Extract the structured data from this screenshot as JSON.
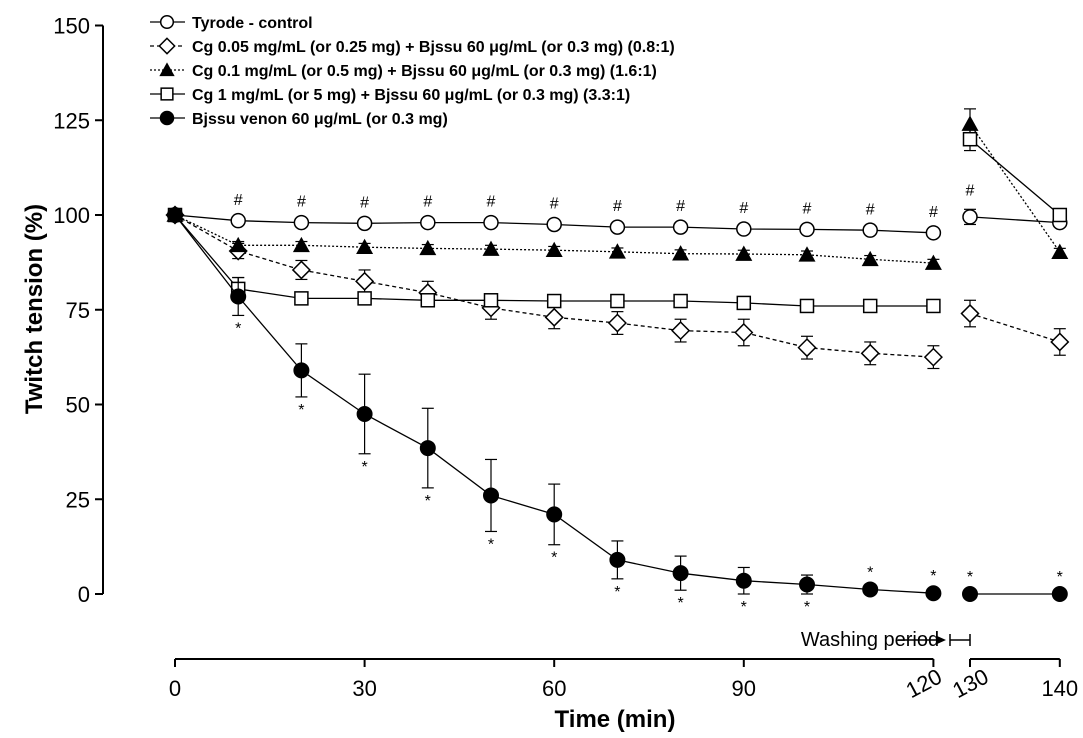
{
  "chart_data": {
    "type": "line",
    "xlabel": "Time (min)",
    "ylabel": "Twitch tension (%)",
    "xlim": [
      0,
      140
    ],
    "ylim": [
      0,
      150
    ],
    "xticks": [
      0,
      30,
      60,
      90,
      120,
      130,
      140
    ],
    "yticks": [
      0,
      25,
      50,
      75,
      100,
      125,
      150
    ],
    "legend_position": "top-left",
    "grid": false,
    "annotation": {
      "text": "Washing period",
      "from": 120,
      "to": 130
    },
    "series": [
      {
        "name": "Tyrode - control",
        "marker": "open-circle",
        "line": "solid",
        "x": [
          0,
          10,
          20,
          30,
          40,
          50,
          60,
          70,
          80,
          90,
          100,
          110,
          120,
          130,
          140
        ],
        "y": [
          100,
          98.5,
          98,
          97.8,
          98,
          98,
          97.5,
          96.8,
          96.8,
          96.3,
          96.2,
          96,
          95.3,
          99.5,
          98
        ],
        "err": [
          0,
          0.5,
          0.5,
          0.5,
          0.5,
          0.5,
          0.5,
          0.5,
          0.5,
          0.5,
          0.5,
          0.5,
          0.5,
          2,
          0.5
        ]
      },
      {
        "name": "Cg 0.05 mg/mL (or 0.25 mg) + Bjssu 60  μg/mL (or 0.3 mg) (0.8:1)",
        "marker": "open-diamond",
        "line": "dashed",
        "x": [
          0,
          10,
          20,
          30,
          40,
          50,
          60,
          70,
          80,
          90,
          100,
          110,
          120,
          130,
          140
        ],
        "y": [
          100,
          90.5,
          85.5,
          82.5,
          79.5,
          75.5,
          73,
          71.5,
          69.5,
          69,
          65,
          63.5,
          62.5,
          74,
          66.5
        ],
        "err": [
          0,
          2,
          2.5,
          3,
          3,
          3,
          3,
          3,
          3,
          3.5,
          3,
          3,
          3,
          3.5,
          3.5
        ]
      },
      {
        "name": "Cg 0.1 mg/mL (or 0.5 mg) + Bjssu 60  μg/mL (or 0.3 mg) (1.6:1)",
        "marker": "filled-triangle",
        "line": "dotted",
        "x": [
          0,
          10,
          20,
          30,
          40,
          50,
          60,
          70,
          80,
          90,
          100,
          110,
          120,
          130,
          140
        ],
        "y": [
          100,
          92,
          92,
          91.5,
          91.2,
          91,
          90.7,
          90.3,
          89.8,
          89.7,
          89.5,
          88.3,
          87.3,
          124,
          90.2
        ],
        "err": [
          0,
          1,
          1,
          1,
          1,
          1,
          1,
          1,
          1,
          1,
          1,
          1,
          1,
          4,
          1
        ]
      },
      {
        "name": "Cg 1 mg/mL (or 5 mg) + Bjssu 60  μg/mL (or 0.3 mg) (3.3:1)",
        "marker": "open-square",
        "line": "solid",
        "x": [
          0,
          10,
          20,
          30,
          40,
          50,
          60,
          70,
          80,
          90,
          100,
          110,
          120,
          130,
          140
        ],
        "y": [
          100,
          80.5,
          78,
          78,
          77.5,
          77.5,
          77.3,
          77.3,
          77.3,
          76.8,
          76,
          76,
          76,
          120,
          100
        ],
        "err": [
          0,
          3,
          1.5,
          1.5,
          1.5,
          1.5,
          1.5,
          1.5,
          1.5,
          1,
          1,
          1,
          1,
          3,
          1
        ]
      },
      {
        "name": "Bjssu venon 60 μg/mL (or 0.3 mg)",
        "marker": "filled-circle",
        "line": "solid",
        "x": [
          0,
          10,
          20,
          30,
          40,
          50,
          60,
          70,
          80,
          90,
          100,
          110,
          120,
          130,
          140
        ],
        "y": [
          100,
          78.5,
          59,
          47.5,
          38.5,
          26,
          21,
          9,
          5.5,
          3.5,
          2.5,
          1.2,
          0.2,
          0,
          0
        ],
        "err": [
          0,
          5,
          7,
          10.5,
          10.5,
          9.5,
          8,
          5,
          4.5,
          3.5,
          2.5,
          0.5,
          0,
          0,
          0
        ]
      }
    ],
    "significance": [
      {
        "symbol": "#",
        "x": [
          10,
          20,
          30,
          40,
          50,
          60,
          70,
          80,
          90,
          100,
          110,
          120,
          130
        ]
      },
      {
        "symbol": "*",
        "x": [
          10,
          20,
          30,
          40,
          50,
          60,
          70,
          80,
          90,
          100,
          110,
          120,
          130,
          140
        ]
      }
    ]
  }
}
